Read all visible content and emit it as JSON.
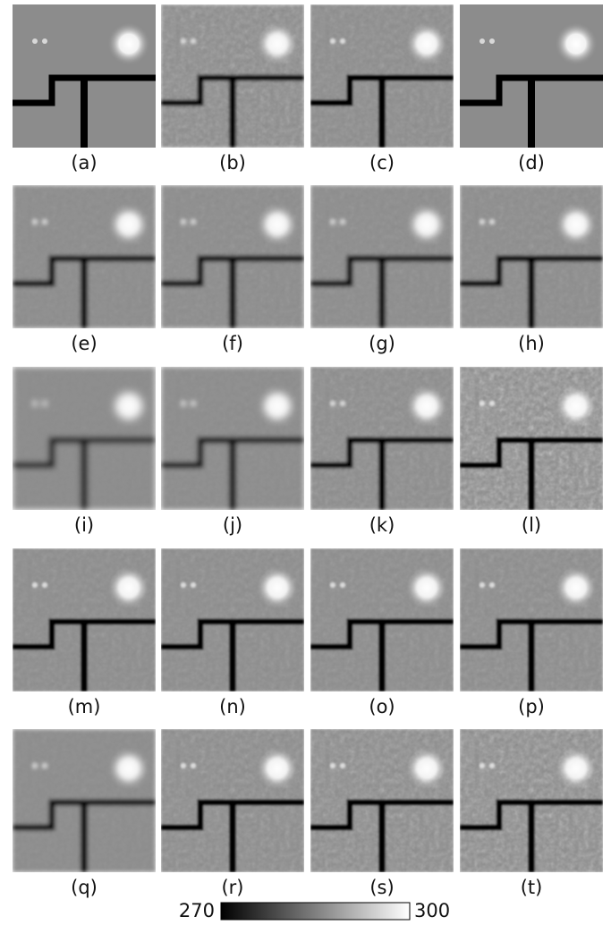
{
  "panels": [
    {
      "label": "(a)"
    },
    {
      "label": "(b)"
    },
    {
      "label": "(c)"
    },
    {
      "label": "(d)"
    },
    {
      "label": "(e)"
    },
    {
      "label": "(f)"
    },
    {
      "label": "(g)"
    },
    {
      "label": "(h)"
    },
    {
      "label": "(i)"
    },
    {
      "label": "(j)"
    },
    {
      "label": "(k)"
    },
    {
      "label": "(l)"
    },
    {
      "label": "(m)"
    },
    {
      "label": "(n)"
    },
    {
      "label": "(o)"
    },
    {
      "label": "(p)"
    },
    {
      "label": "(q)"
    },
    {
      "label": "(r)"
    },
    {
      "label": "(s)"
    },
    {
      "label": "(t)"
    }
  ],
  "colorbar": {
    "min": 270,
    "max": 300
  }
}
